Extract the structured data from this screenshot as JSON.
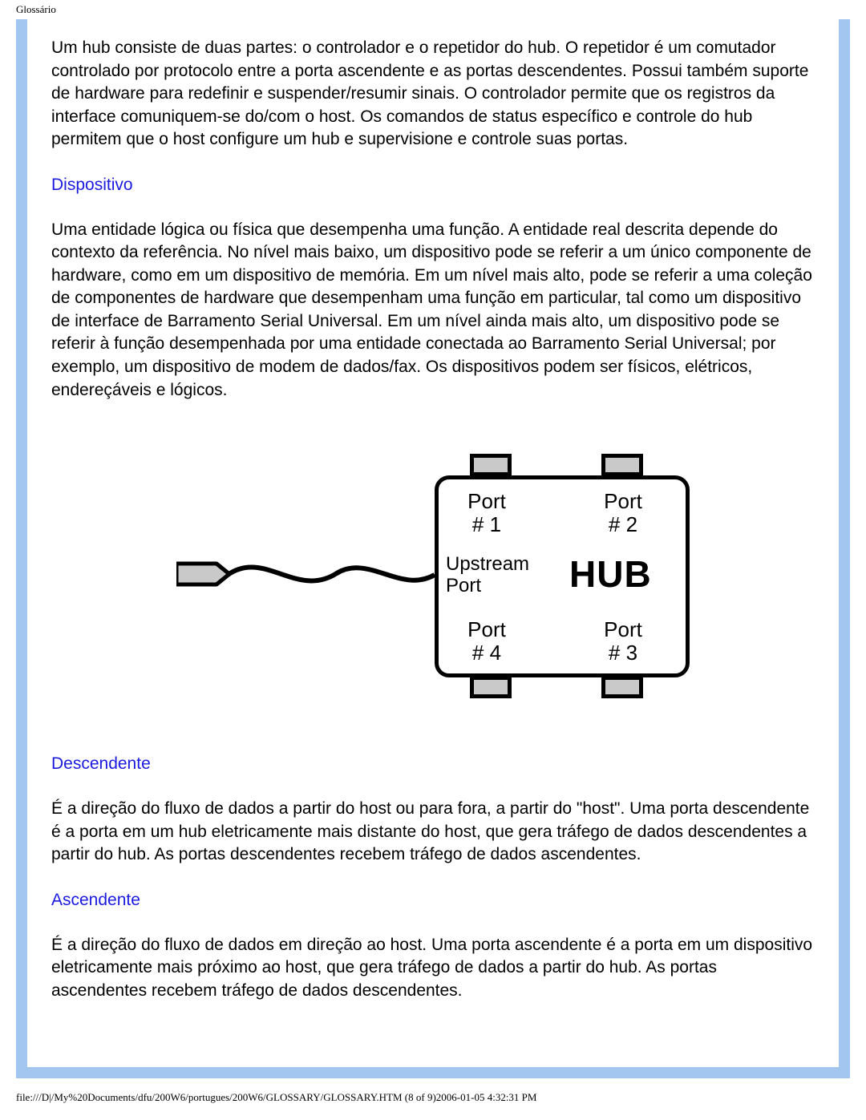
{
  "page_header": "Glossário",
  "intro_paragraph": "Um hub consiste de duas partes: o controlador e o repetidor do hub. O repetidor é um comutador controlado por protocolo entre a porta ascendente e as portas descendentes.  Possui também suporte de hardware para redefinir e suspender/resumir sinais. O controlador permite  que os registros da interface comuniquem-se do/com o host. Os comandos de status específico e controle do hub permitem que o host configure um hub e supervisione e controle suas portas.",
  "sections": {
    "dispositivo": {
      "title": "Dispositivo",
      "text": "Uma entidade lógica ou física que desempenha uma função.  A entidade real descrita depende do contexto da referência.  No nível mais baixo, um dispositivo pode se referir a um único componente de hardware, como em um dispositivo de memória. Em um nível mais alto, pode se referir a uma coleção de componentes de hardware que desempenham uma função em particular, tal como um dispositivo de interface de Barramento Serial Universal.  Em um nível ainda mais alto, um dispositivo pode se referir à função desempenhada por uma entidade conectada ao Barramento Serial Universal; por exemplo, um dispositivo de modem de dados/fax.  Os dispositivos podem ser físicos, elétricos, endereçáveis e lógicos."
    },
    "descendente": {
      "title": "Descendente",
      "text": "É a direção do fluxo de dados a partir do host ou para fora, a partir do \"host\". Uma porta descendente  é a porta em um hub eletricamente mais distante do host, que gera tráfego de dados descendentes a partir do hub.  As portas descendentes  recebem tráfego de dados ascendentes."
    },
    "ascendente": {
      "title": "Ascendente",
      "text": "É a direção do fluxo de dados em direção ao host.  Uma porta ascendente é a porta em um dispositivo eletricamente mais próximo ao host, que gera tráfego de dados a partir do hub.  As portas ascendentes  recebem tráfego de dados descendentes."
    }
  },
  "diagram": {
    "type": "diagram",
    "port1": "Port\n# 1",
    "port2": "Port\n# 2",
    "port3": "Port\n# 3",
    "port4": "Port\n# 4",
    "upstream": "Upstream\nPort",
    "hub_text": "HUB",
    "tab_fill": "#c9c9c9",
    "border_color": "#000000",
    "border_width": 5,
    "background": "#ffffff"
  },
  "footer": "file:///D|/My%20Documents/dfu/200W6/portugues/200W6/GLOSSARY/GLOSSARY.HTM (8 of 9)2006-01-05 4:32:31 PM",
  "colors": {
    "frame_border": "#a3c6f0",
    "heading_color": "#1b1be0",
    "text_color": "#000000",
    "background": "#ffffff"
  },
  "typography": {
    "body_fontsize": 21,
    "heading_fontsize": 21,
    "header_fontsize": 13,
    "footer_fontsize": 13
  }
}
